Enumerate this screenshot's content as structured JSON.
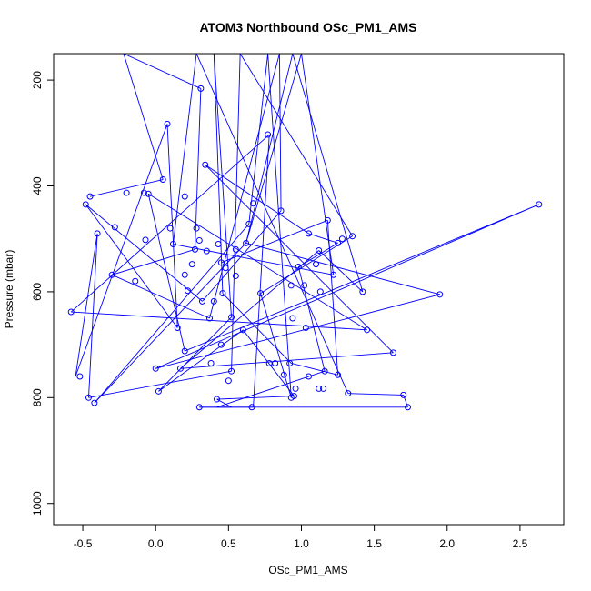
{
  "chart_data": {
    "type": "line",
    "title": "ATOM3 Northbound OSc_PM1_AMS",
    "xlabel": "OSc_PM1_AMS",
    "ylabel": "Pressure (mbar)",
    "xlim": [
      -0.7,
      2.8
    ],
    "ylim": [
      1040,
      150
    ],
    "y_reversed": true,
    "grid": false,
    "legend": "none",
    "line_color": "#0000ff",
    "x_ticks": [
      -0.5,
      0.0,
      0.5,
      1.0,
      1.5,
      2.0,
      2.5
    ],
    "x_tick_labels": [
      "-0.5",
      "0.0",
      "0.5",
      "1.0",
      "1.5",
      "2.0",
      "2.5"
    ],
    "y_ticks": [
      200,
      400,
      600,
      800,
      1000
    ],
    "y_tick_labels": [
      "200",
      "400",
      "600",
      "800",
      "1000"
    ],
    "series": [
      {
        "values": [
          {
            "x": -0.45,
            "y": 420
          },
          {
            "x": 0.05,
            "y": 388
          },
          {
            "x": -0.22,
            "y": 150
          },
          {
            "x": 0.31,
            "y": 216
          },
          {
            "x": 0.27,
            "y": 520
          },
          {
            "x": -0.3,
            "y": 568
          },
          {
            "x": 0.37,
            "y": 650
          },
          {
            "x": 0.85,
            "y": 150
          },
          {
            "x": 0.86,
            "y": 447
          },
          {
            "x": 0.32,
            "y": 618
          },
          {
            "x": -0.48,
            "y": 435
          },
          {
            "x": 0.15,
            "y": 668
          },
          {
            "x": 0.08,
            "y": 283
          },
          {
            "x": -0.55,
            "y": 760
          },
          {
            "x": -0.4,
            "y": 490
          },
          {
            "x": -0.46,
            "y": 800
          },
          {
            "x": 0.52,
            "y": 750
          },
          {
            "x": 0.58,
            "y": 150
          },
          {
            "x": 1.35,
            "y": 495
          },
          {
            "x": 0.72,
            "y": 603
          },
          {
            "x": 0.93,
            "y": 800
          },
          {
            "x": 0.77,
            "y": 150
          },
          {
            "x": 0.64,
            "y": 472
          },
          {
            "x": -0.42,
            "y": 810
          },
          {
            "x": 0.62,
            "y": 508
          },
          {
            "x": 0.94,
            "y": 150
          },
          {
            "x": 1.42,
            "y": 600
          },
          {
            "x": 1.12,
            "y": 522
          },
          {
            "x": 0.17,
            "y": 745
          },
          {
            "x": 1.63,
            "y": 715
          },
          {
            "x": 0.34,
            "y": 360
          },
          {
            "x": 1.05,
            "y": 490
          },
          {
            "x": 1.25,
            "y": 508
          },
          {
            "x": 0.98,
            "y": 553
          },
          {
            "x": 1.16,
            "y": 750
          },
          {
            "x": 0.42,
            "y": 818
          },
          {
            "x": 0.67,
            "y": 818
          },
          {
            "x": 0.78,
            "y": 303
          },
          {
            "x": -0.58,
            "y": 638
          },
          {
            "x": 1.45,
            "y": 672
          },
          {
            "x": -0.05,
            "y": 415
          },
          {
            "x": 0.2,
            "y": 712
          },
          {
            "x": 2.63,
            "y": 435
          },
          {
            "x": 0.0,
            "y": 745
          },
          {
            "x": 1.95,
            "y": 605
          },
          {
            "x": 0.62,
            "y": 508
          },
          {
            "x": 1.0,
            "y": 150
          },
          {
            "x": 1.22,
            "y": 568
          },
          {
            "x": 0.12,
            "y": 510
          },
          {
            "x": 0.28,
            "y": 150
          },
          {
            "x": 1.32,
            "y": 792
          },
          {
            "x": 1.7,
            "y": 795
          },
          {
            "x": 1.73,
            "y": 818
          },
          {
            "x": 0.3,
            "y": 818
          },
          {
            "x": 0.52,
            "y": 818
          },
          {
            "x": 0.42,
            "y": 803
          },
          {
            "x": 0.95,
            "y": 797
          },
          {
            "x": 0.6,
            "y": 672
          },
          {
            "x": 0.02,
            "y": 788
          },
          {
            "x": 0.52,
            "y": 648
          },
          {
            "x": 0.4,
            "y": 150
          },
          {
            "x": 0.46,
            "y": 603
          },
          {
            "x": 0.93,
            "y": 735
          },
          {
            "x": 1.25,
            "y": 757
          },
          {
            "x": 1.18,
            "y": 465
          },
          {
            "x": 0.45,
            "y": 545
          }
        ]
      }
    ],
    "markers": [
      {
        "x": -0.45,
        "y": 420
      },
      {
        "x": -0.48,
        "y": 435
      },
      {
        "x": -0.4,
        "y": 490
      },
      {
        "x": -0.58,
        "y": 638
      },
      {
        "x": -0.52,
        "y": 760
      },
      {
        "x": -0.46,
        "y": 800
      },
      {
        "x": -0.42,
        "y": 810
      },
      {
        "x": -0.3,
        "y": 568
      },
      {
        "x": -0.28,
        "y": 478
      },
      {
        "x": -0.2,
        "y": 413
      },
      {
        "x": -0.14,
        "y": 580
      },
      {
        "x": -0.08,
        "y": 413
      },
      {
        "x": -0.05,
        "y": 415
      },
      {
        "x": -0.07,
        "y": 502
      },
      {
        "x": 0.0,
        "y": 745
      },
      {
        "x": 0.02,
        "y": 788
      },
      {
        "x": 0.05,
        "y": 388
      },
      {
        "x": 0.08,
        "y": 283
      },
      {
        "x": 0.1,
        "y": 480
      },
      {
        "x": 0.12,
        "y": 510
      },
      {
        "x": 0.15,
        "y": 668
      },
      {
        "x": 0.17,
        "y": 745
      },
      {
        "x": 0.2,
        "y": 712
      },
      {
        "x": 0.2,
        "y": 420
      },
      {
        "x": 0.2,
        "y": 568
      },
      {
        "x": 0.22,
        "y": 598
      },
      {
        "x": 0.25,
        "y": 548
      },
      {
        "x": 0.27,
        "y": 520
      },
      {
        "x": 0.28,
        "y": 480
      },
      {
        "x": 0.3,
        "y": 503
      },
      {
        "x": 0.31,
        "y": 216
      },
      {
        "x": 0.32,
        "y": 618
      },
      {
        "x": 0.34,
        "y": 360
      },
      {
        "x": 0.35,
        "y": 523
      },
      {
        "x": 0.37,
        "y": 650
      },
      {
        "x": 0.38,
        "y": 735
      },
      {
        "x": 0.4,
        "y": 618
      },
      {
        "x": 0.42,
        "y": 803
      },
      {
        "x": 0.43,
        "y": 510
      },
      {
        "x": 0.45,
        "y": 545
      },
      {
        "x": 0.45,
        "y": 700
      },
      {
        "x": 0.46,
        "y": 603
      },
      {
        "x": 0.48,
        "y": 555
      },
      {
        "x": 0.5,
        "y": 768
      },
      {
        "x": 0.52,
        "y": 750
      },
      {
        "x": 0.52,
        "y": 648
      },
      {
        "x": 0.55,
        "y": 570
      },
      {
        "x": 0.55,
        "y": 520
      },
      {
        "x": 0.6,
        "y": 672
      },
      {
        "x": 0.62,
        "y": 508
      },
      {
        "x": 0.64,
        "y": 472
      },
      {
        "x": 0.66,
        "y": 818
      },
      {
        "x": 0.67,
        "y": 433
      },
      {
        "x": 0.72,
        "y": 603
      },
      {
        "x": 0.77,
        "y": 303
      },
      {
        "x": 0.78,
        "y": 735
      },
      {
        "x": 0.82,
        "y": 735
      },
      {
        "x": 0.86,
        "y": 447
      },
      {
        "x": 0.88,
        "y": 757
      },
      {
        "x": 0.92,
        "y": 735
      },
      {
        "x": 0.93,
        "y": 800
      },
      {
        "x": 0.93,
        "y": 588
      },
      {
        "x": 0.94,
        "y": 650
      },
      {
        "x": 0.95,
        "y": 797
      },
      {
        "x": 0.96,
        "y": 783
      },
      {
        "x": 0.98,
        "y": 553
      },
      {
        "x": 1.02,
        "y": 588
      },
      {
        "x": 1.03,
        "y": 668
      },
      {
        "x": 1.05,
        "y": 490
      },
      {
        "x": 1.05,
        "y": 760
      },
      {
        "x": 1.1,
        "y": 548
      },
      {
        "x": 1.12,
        "y": 522
      },
      {
        "x": 1.13,
        "y": 600
      },
      {
        "x": 1.15,
        "y": 783
      },
      {
        "x": 1.16,
        "y": 750
      },
      {
        "x": 1.18,
        "y": 465
      },
      {
        "x": 1.22,
        "y": 568
      },
      {
        "x": 1.25,
        "y": 508
      },
      {
        "x": 1.25,
        "y": 757
      },
      {
        "x": 1.28,
        "y": 500
      },
      {
        "x": 1.32,
        "y": 792
      },
      {
        "x": 1.35,
        "y": 495
      },
      {
        "x": 1.42,
        "y": 600
      },
      {
        "x": 1.45,
        "y": 672
      },
      {
        "x": 1.63,
        "y": 715
      },
      {
        "x": 1.7,
        "y": 795
      },
      {
        "x": 1.73,
        "y": 818
      },
      {
        "x": 1.95,
        "y": 605
      },
      {
        "x": 2.63,
        "y": 435
      },
      {
        "x": 0.3,
        "y": 818
      },
      {
        "x": 1.12,
        "y": 783
      }
    ]
  }
}
